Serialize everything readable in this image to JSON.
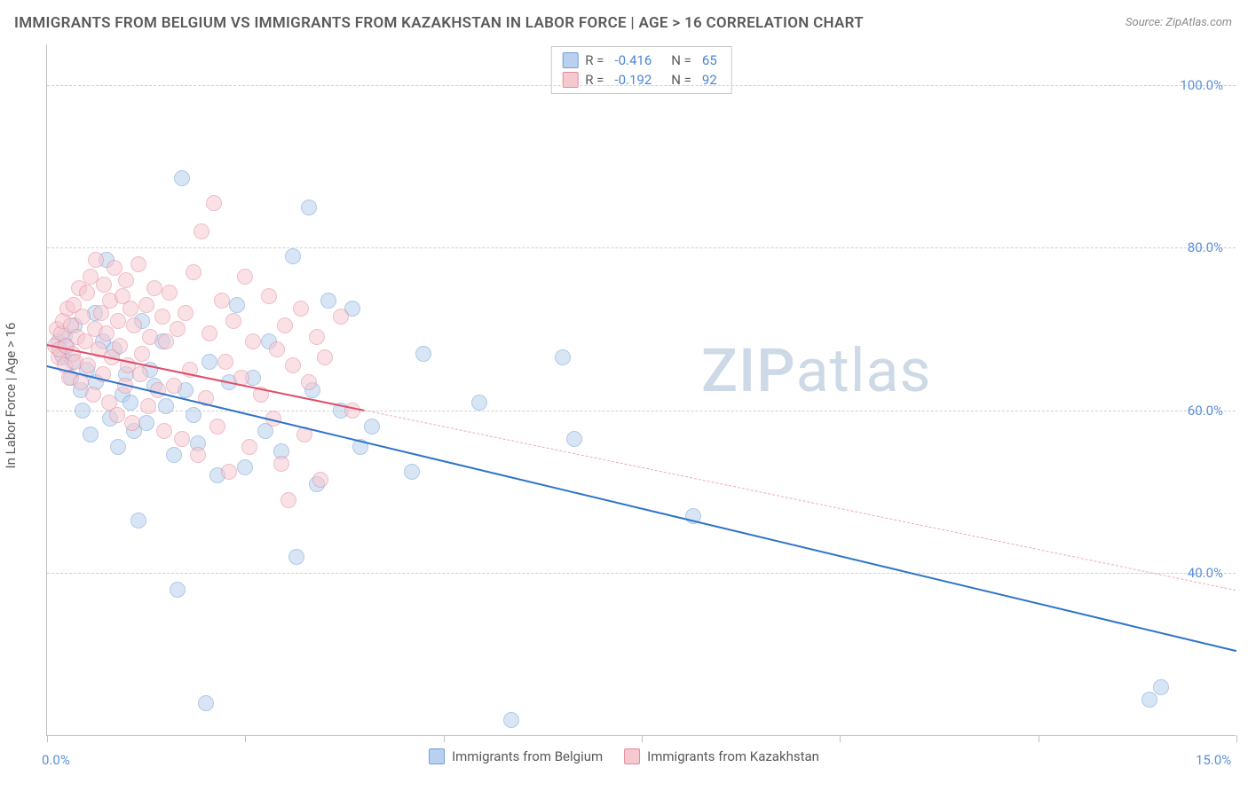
{
  "title": "IMMIGRANTS FROM BELGIUM VS IMMIGRANTS FROM KAZAKHSTAN IN LABOR FORCE | AGE > 16 CORRELATION CHART",
  "source": "Source: ZipAtlas.com",
  "watermark": {
    "text_zip": "ZIP",
    "text_atlas": "atlas",
    "color": "#cdd9e6",
    "fontsize": 68
  },
  "y_axis_label": "In Labor Force | Age > 16",
  "chart": {
    "type": "scatter",
    "xlim": [
      0,
      15
    ],
    "ylim": [
      20,
      105
    ],
    "x_ticks": [
      0,
      2.5,
      5.0,
      7.5,
      10.0,
      12.5,
      15.0
    ],
    "x_tick_labels_shown": {
      "0": "0.0%",
      "15": "15.0%"
    },
    "y_gridlines": [
      40,
      60,
      80,
      100
    ],
    "y_tick_labels": {
      "40": "40.0%",
      "60": "60.0%",
      "80": "80.0%",
      "100": "100.0%"
    },
    "background_color": "#ffffff",
    "grid_color": "#d0d0d0",
    "axis_line_color": "#c0c0c0",
    "tick_label_color": "#5b8fd6",
    "tick_label_fontsize": 15,
    "marker_radius": 9,
    "marker_opacity": 0.55,
    "marker_border_width": 1
  },
  "series": [
    {
      "key": "belgium",
      "label": "Immigrants from Belgium",
      "fill_color": "#b9d1ee",
      "border_color": "#6f9fd8",
      "R": "-0.416",
      "N": "65",
      "regression": {
        "x1": 0.0,
        "y1": 65.5,
        "x2": 15.0,
        "y2": 30.5,
        "solid_until_x": 15.0,
        "line_color": "#2f73c9",
        "line_width": 2.5,
        "dash_color": "#2f73c9"
      },
      "points": [
        [
          0.15,
          68.5
        ],
        [
          0.18,
          67.0
        ],
        [
          0.2,
          66.5
        ],
        [
          0.22,
          69.2
        ],
        [
          0.25,
          67.8
        ],
        [
          0.3,
          64.0
        ],
        [
          0.32,
          66.0
        ],
        [
          0.35,
          70.5
        ],
        [
          0.42,
          62.5
        ],
        [
          0.45,
          60.0
        ],
        [
          0.5,
          65.0
        ],
        [
          0.55,
          57.0
        ],
        [
          0.6,
          72.0
        ],
        [
          0.62,
          63.5
        ],
        [
          0.7,
          68.5
        ],
        [
          0.75,
          78.5
        ],
        [
          0.8,
          59.0
        ],
        [
          0.85,
          67.5
        ],
        [
          0.9,
          55.5
        ],
        [
          0.95,
          62.0
        ],
        [
          1.0,
          64.5
        ],
        [
          1.05,
          61.0
        ],
        [
          1.1,
          57.5
        ],
        [
          1.15,
          46.5
        ],
        [
          1.2,
          71.0
        ],
        [
          1.25,
          58.5
        ],
        [
          1.3,
          65.0
        ],
        [
          1.35,
          63.0
        ],
        [
          1.45,
          68.5
        ],
        [
          1.5,
          60.5
        ],
        [
          1.6,
          54.5
        ],
        [
          1.65,
          38.0
        ],
        [
          1.7,
          88.5
        ],
        [
          1.75,
          62.5
        ],
        [
          1.85,
          59.5
        ],
        [
          1.9,
          56.0
        ],
        [
          2.0,
          24.0
        ],
        [
          2.05,
          66.0
        ],
        [
          2.15,
          52.0
        ],
        [
          2.3,
          63.5
        ],
        [
          2.4,
          73.0
        ],
        [
          2.5,
          53.0
        ],
        [
          2.6,
          64.0
        ],
        [
          2.75,
          57.5
        ],
        [
          2.8,
          68.5
        ],
        [
          2.95,
          55.0
        ],
        [
          3.1,
          79.0
        ],
        [
          3.15,
          42.0
        ],
        [
          3.3,
          85.0
        ],
        [
          3.35,
          62.5
        ],
        [
          3.4,
          51.0
        ],
        [
          3.55,
          73.5
        ],
        [
          3.7,
          60.0
        ],
        [
          3.85,
          72.5
        ],
        [
          3.95,
          55.5
        ],
        [
          4.1,
          58.0
        ],
        [
          4.6,
          52.5
        ],
        [
          4.75,
          67.0
        ],
        [
          5.45,
          61.0
        ],
        [
          5.85,
          22.0
        ],
        [
          6.5,
          66.5
        ],
        [
          6.65,
          56.5
        ],
        [
          8.15,
          47.0
        ],
        [
          13.9,
          24.5
        ],
        [
          14.05,
          26.0
        ]
      ]
    },
    {
      "key": "kazakhstan",
      "label": "Immigrants from Kazakhstan",
      "fill_color": "#f6c9d1",
      "border_color": "#e38a9c",
      "R": "-0.192",
      "N": "92",
      "regression": {
        "x1": 0.0,
        "y1": 68.2,
        "x2": 15.0,
        "y2": 38.0,
        "solid_until_x": 4.0,
        "line_color": "#de4d6a",
        "line_width": 2.5,
        "dash_color": "#f0a8b5"
      },
      "points": [
        [
          0.1,
          68.0
        ],
        [
          0.12,
          70.0
        ],
        [
          0.14,
          66.5
        ],
        [
          0.16,
          67.5
        ],
        [
          0.18,
          69.5
        ],
        [
          0.2,
          71.0
        ],
        [
          0.22,
          65.5
        ],
        [
          0.24,
          68.0
        ],
        [
          0.26,
          72.5
        ],
        [
          0.28,
          64.0
        ],
        [
          0.3,
          70.5
        ],
        [
          0.32,
          67.0
        ],
        [
          0.34,
          73.0
        ],
        [
          0.36,
          66.0
        ],
        [
          0.38,
          69.0
        ],
        [
          0.4,
          75.0
        ],
        [
          0.42,
          63.5
        ],
        [
          0.45,
          71.5
        ],
        [
          0.48,
          68.5
        ],
        [
          0.5,
          74.5
        ],
        [
          0.52,
          65.5
        ],
        [
          0.55,
          76.5
        ],
        [
          0.58,
          62.0
        ],
        [
          0.6,
          70.0
        ],
        [
          0.62,
          78.5
        ],
        [
          0.65,
          67.5
        ],
        [
          0.68,
          72.0
        ],
        [
          0.7,
          64.5
        ],
        [
          0.72,
          75.5
        ],
        [
          0.75,
          69.5
        ],
        [
          0.78,
          61.0
        ],
        [
          0.8,
          73.5
        ],
        [
          0.82,
          66.5
        ],
        [
          0.85,
          77.5
        ],
        [
          0.88,
          59.5
        ],
        [
          0.9,
          71.0
        ],
        [
          0.92,
          68.0
        ],
        [
          0.95,
          74.0
        ],
        [
          0.98,
          63.0
        ],
        [
          1.0,
          76.0
        ],
        [
          1.02,
          65.5
        ],
        [
          1.05,
          72.5
        ],
        [
          1.08,
          58.5
        ],
        [
          1.1,
          70.5
        ],
        [
          1.15,
          78.0
        ],
        [
          1.18,
          64.5
        ],
        [
          1.2,
          67.0
        ],
        [
          1.25,
          73.0
        ],
        [
          1.28,
          60.5
        ],
        [
          1.3,
          69.0
        ],
        [
          1.35,
          75.0
        ],
        [
          1.4,
          62.5
        ],
        [
          1.45,
          71.5
        ],
        [
          1.48,
          57.5
        ],
        [
          1.5,
          68.5
        ],
        [
          1.55,
          74.5
        ],
        [
          1.6,
          63.0
        ],
        [
          1.65,
          70.0
        ],
        [
          1.7,
          56.5
        ],
        [
          1.75,
          72.0
        ],
        [
          1.8,
          65.0
        ],
        [
          1.85,
          77.0
        ],
        [
          1.9,
          54.5
        ],
        [
          1.95,
          82.0
        ],
        [
          2.0,
          61.5
        ],
        [
          2.05,
          69.5
        ],
        [
          2.1,
          85.5
        ],
        [
          2.15,
          58.0
        ],
        [
          2.2,
          73.5
        ],
        [
          2.25,
          66.0
        ],
        [
          2.3,
          52.5
        ],
        [
          2.35,
          71.0
        ],
        [
          2.45,
          64.0
        ],
        [
          2.5,
          76.5
        ],
        [
          2.55,
          55.5
        ],
        [
          2.6,
          68.5
        ],
        [
          2.7,
          62.0
        ],
        [
          2.8,
          74.0
        ],
        [
          2.85,
          59.0
        ],
        [
          2.9,
          67.5
        ],
        [
          2.95,
          53.5
        ],
        [
          3.0,
          70.5
        ],
        [
          3.05,
          49.0
        ],
        [
          3.1,
          65.5
        ],
        [
          3.2,
          72.5
        ],
        [
          3.25,
          57.0
        ],
        [
          3.3,
          63.5
        ],
        [
          3.4,
          69.0
        ],
        [
          3.45,
          51.5
        ],
        [
          3.5,
          66.5
        ],
        [
          3.7,
          71.5
        ],
        [
          3.85,
          60.0
        ]
      ]
    }
  ],
  "legend_top": {
    "r_label": "R =",
    "n_label": "N =",
    "value_color": "#4a86d8",
    "label_color": "#5a5a5a"
  }
}
